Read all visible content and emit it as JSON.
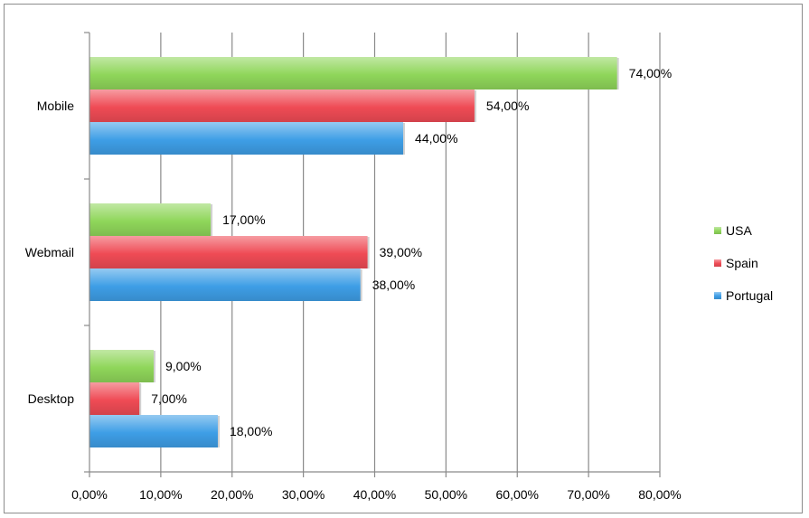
{
  "chart_data": {
    "type": "bar",
    "orientation": "horizontal",
    "categories": [
      "Mobile",
      "Webmail",
      "Desktop"
    ],
    "series": [
      {
        "name": "USA",
        "values": [
          74,
          17,
          9
        ],
        "color": "#8fd65a",
        "labels": [
          "74,00%",
          "17,00%",
          "9,00%"
        ]
      },
      {
        "name": "Spain",
        "values": [
          54,
          39,
          7
        ],
        "color": "#ef4b55",
        "labels": [
          "54,00%",
          "39,00%",
          "7,00%"
        ]
      },
      {
        "name": "Portugal",
        "values": [
          44,
          38,
          18
        ],
        "color": "#3e9ee6",
        "labels": [
          "44,00%",
          "38,00%",
          "18,00%"
        ]
      }
    ],
    "xlim": [
      0,
      80
    ],
    "xticks": [
      0,
      10,
      20,
      30,
      40,
      50,
      60,
      70,
      80
    ],
    "xtick_labels": [
      "0,00%",
      "10,00%",
      "20,00%",
      "30,00%",
      "40,00%",
      "50,00%",
      "60,00%",
      "70,00%",
      "80,00%"
    ],
    "grid": true,
    "legend_position": "right",
    "title": "",
    "xlabel": "",
    "ylabel": ""
  }
}
